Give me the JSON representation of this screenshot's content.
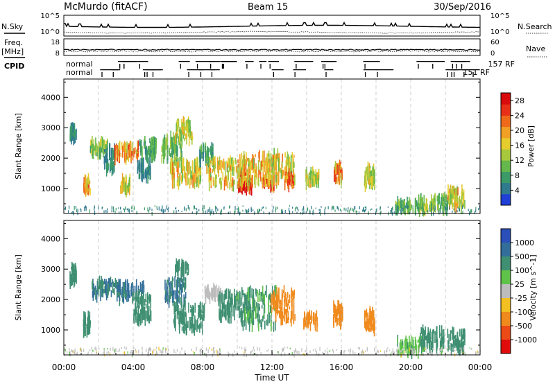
{
  "header": {
    "station": "McMurdo (fitACF)",
    "beam": "Beam 15",
    "date": "30/Sep/2016"
  },
  "strips": {
    "nsky_label": "N.Sky",
    "nsearch_label": "N.Search",
    "nsky_ticks": [
      "10^5",
      "10^0"
    ],
    "nsearch_ticks": [
      "10^5",
      "10^0"
    ],
    "freq_label_line1": "Freq.",
    "freq_label_line2": "[MHz]",
    "freq_ticks": [
      "18",
      "8"
    ],
    "nave_label": "Nave",
    "nave_ticks": [
      "60",
      "0"
    ],
    "cpid_label": "CPID",
    "cpid_row1_left": "normal",
    "cpid_row2_left": "normal",
    "cpid_row1_right": "157 RF",
    "cpid_row2_right": "151 RF"
  },
  "chart_data": [
    {
      "type": "heatmap",
      "panel": "power",
      "ylabel": "Slant Range [km]",
      "xlabel": "",
      "ylim": [
        180,
        4600
      ],
      "yticks": [
        1000,
        2000,
        3000,
        4000
      ],
      "colorbar_label": "Power [dB]",
      "colorbar_ticks": [
        4,
        8,
        12,
        16,
        20,
        24,
        28
      ],
      "colorbar_range": [
        0,
        30
      ],
      "colorbar_colors": [
        "#1f3fd6",
        "#2f7a8f",
        "#3c9a68",
        "#64b84c",
        "#a8c83c",
        "#e6cc2c",
        "#f0a024",
        "#ee6a1a",
        "#e83018",
        "#d80c0c"
      ],
      "blobs": [
        {
          "t": 0.5,
          "r": 2800,
          "dt": 0.2,
          "dr": 250,
          "v": 6
        },
        {
          "t": 1.3,
          "r": 1100,
          "dt": 0.2,
          "dr": 220,
          "v": 18
        },
        {
          "t": 2.0,
          "r": 2350,
          "dt": 0.5,
          "dr": 200,
          "v": 12
        },
        {
          "t": 2.6,
          "r": 1950,
          "dt": 0.3,
          "dr": 350,
          "v": 6
        },
        {
          "t": 3.6,
          "r": 2200,
          "dt": 0.7,
          "dr": 250,
          "v": 20
        },
        {
          "t": 3.5,
          "r": 1100,
          "dt": 0.3,
          "dr": 200,
          "v": 16
        },
        {
          "t": 4.8,
          "r": 2300,
          "dt": 0.5,
          "dr": 300,
          "v": 8
        },
        {
          "t": 4.6,
          "r": 1600,
          "dt": 0.4,
          "dr": 250,
          "v": 5
        },
        {
          "t": 6.2,
          "r": 2300,
          "dt": 0.6,
          "dr": 400,
          "v": 10
        },
        {
          "t": 6.9,
          "r": 2900,
          "dt": 0.5,
          "dr": 300,
          "v": 14
        },
        {
          "t": 7.0,
          "r": 1500,
          "dt": 0.9,
          "dr": 400,
          "v": 16
        },
        {
          "t": 8.2,
          "r": 2100,
          "dt": 0.4,
          "dr": 250,
          "v": 8
        },
        {
          "t": 9.5,
          "r": 1500,
          "dt": 1.3,
          "dr": 420,
          "v": 16
        },
        {
          "t": 10.4,
          "r": 1150,
          "dt": 0.4,
          "dr": 180,
          "v": 28
        },
        {
          "t": 11.2,
          "r": 1600,
          "dt": 1.2,
          "dr": 500,
          "v": 18
        },
        {
          "t": 11.8,
          "r": 1200,
          "dt": 0.3,
          "dr": 160,
          "v": 26
        },
        {
          "t": 12.5,
          "r": 1700,
          "dt": 0.8,
          "dr": 450,
          "v": 16
        },
        {
          "t": 13.0,
          "r": 1300,
          "dt": 0.3,
          "dr": 200,
          "v": 20
        },
        {
          "t": 14.3,
          "r": 1350,
          "dt": 0.4,
          "dr": 200,
          "v": 14
        },
        {
          "t": 15.8,
          "r": 1500,
          "dt": 0.25,
          "dr": 300,
          "v": 20
        },
        {
          "t": 17.6,
          "r": 1400,
          "dt": 0.3,
          "dr": 300,
          "v": 14
        },
        {
          "t": 19.8,
          "r": 400,
          "dt": 0.7,
          "dr": 150,
          "v": 10
        },
        {
          "t": 20.9,
          "r": 450,
          "dt": 0.5,
          "dr": 200,
          "v": 12
        },
        {
          "t": 21.8,
          "r": 500,
          "dt": 0.3,
          "dr": 200,
          "v": 10
        },
        {
          "t": 22.6,
          "r": 650,
          "dt": 0.5,
          "dr": 300,
          "v": 16
        }
      ]
    },
    {
      "type": "heatmap",
      "panel": "velocity",
      "ylabel": "Slant Range [km]",
      "xlabel": "Time UT",
      "ylim": [
        180,
        4600
      ],
      "yticks": [
        1000,
        2000,
        3000,
        4000
      ],
      "xticks": [
        "00:00",
        "04:00",
        "08:00",
        "12:00",
        "16:00",
        "20:00",
        "00:00"
      ],
      "xlim_hours": [
        0,
        24
      ],
      "colorbar_label": "Velocity [m s^-1]",
      "colorbar_ticks": [
        "1000",
        "500",
        "100",
        "25",
        "-25",
        "-100",
        "-500",
        "-1000"
      ],
      "colorbar_colors": [
        "#2a4fb8",
        "#336e9a",
        "#3f8f72",
        "#5fc34a",
        "#bdbdbd",
        "#f2c020",
        "#f08a1c",
        "#ec4a16",
        "#e00c0c"
      ],
      "blobs": [
        {
          "t": 0.5,
          "r": 2800,
          "dt": 0.2,
          "dr": 250,
          "v": 200
        },
        {
          "t": 1.3,
          "r": 1200,
          "dt": 0.2,
          "dr": 250,
          "v": 150
        },
        {
          "t": 2.4,
          "r": 2350,
          "dt": 0.8,
          "dr": 250,
          "v": 500
        },
        {
          "t": 3.8,
          "r": 2250,
          "dt": 0.8,
          "dr": 250,
          "v": 600
        },
        {
          "t": 4.5,
          "r": 1700,
          "dt": 0.5,
          "dr": 400,
          "v": 300
        },
        {
          "t": 6.4,
          "r": 2300,
          "dt": 0.6,
          "dr": 400,
          "v": 500
        },
        {
          "t": 7.2,
          "r": 1400,
          "dt": 0.9,
          "dr": 400,
          "v": 300
        },
        {
          "t": 6.8,
          "r": 3000,
          "dt": 0.4,
          "dr": 200,
          "v": 150
        },
        {
          "t": 8.6,
          "r": 2200,
          "dt": 0.5,
          "dr": 200,
          "v": 0
        },
        {
          "t": 9.8,
          "r": 1800,
          "dt": 0.9,
          "dr": 400,
          "v": 150
        },
        {
          "t": 11.2,
          "r": 1700,
          "dt": 1.0,
          "dr": 600,
          "v": 120
        },
        {
          "t": 12.6,
          "r": 1800,
          "dt": 0.7,
          "dr": 500,
          "v": -300
        },
        {
          "t": 14.2,
          "r": 1300,
          "dt": 0.4,
          "dr": 200,
          "v": -300
        },
        {
          "t": 15.8,
          "r": 1500,
          "dt": 0.3,
          "dr": 300,
          "v": -300
        },
        {
          "t": 17.6,
          "r": 1300,
          "dt": 0.3,
          "dr": 300,
          "v": -300
        },
        {
          "t": 20.0,
          "r": 450,
          "dt": 0.8,
          "dr": 200,
          "v": 80
        },
        {
          "t": 21.2,
          "r": 700,
          "dt": 0.7,
          "dr": 300,
          "v": 200
        },
        {
          "t": 22.6,
          "r": 650,
          "dt": 0.5,
          "dr": 300,
          "v": 200
        }
      ]
    }
  ]
}
